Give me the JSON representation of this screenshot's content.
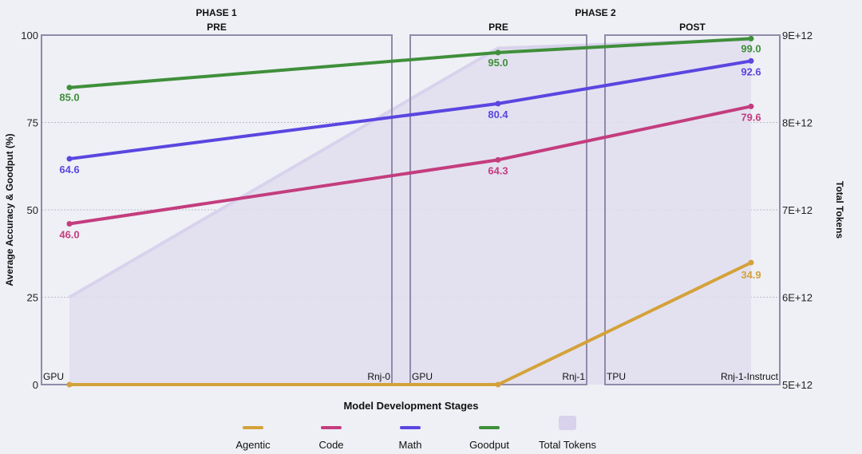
{
  "chart_data": {
    "type": "line",
    "x": [
      0,
      1,
      2
    ],
    "phases": [
      {
        "label": "PHASE 1",
        "center_x": 0.0
      },
      {
        "label": "PHASE 2",
        "center_x": 1.5
      }
    ],
    "stages": [
      {
        "label": "PRE",
        "hardware": "GPU",
        "model": "Rnj-0",
        "x_range": [
          -0.15,
          0.95
        ]
      },
      {
        "label": "PRE",
        "hardware": "GPU",
        "model": "Rnj-1",
        "x_range": [
          1.0,
          1.5
        ]
      },
      {
        "label": "POST",
        "hardware": "TPU",
        "model": "Rnj-1-Instruct",
        "x_range": [
          1.55,
          2.1
        ]
      }
    ],
    "xlabel": "Model Development Stages",
    "ylabel": "Average Accuracy & Goodput (%)",
    "ylabel_right": "Total Tokens",
    "ylim": [
      0,
      100
    ],
    "y_ticks": [
      "0",
      "25",
      "50",
      "75",
      "100"
    ],
    "y2lim": [
      5000000000000,
      9000000000000
    ],
    "y2_ticks": [
      "5E+12",
      "6E+12",
      "7E+12",
      "8E+12",
      "9E+12"
    ],
    "grid": "horizontal dotted",
    "legend_position": "bottom",
    "series": [
      {
        "name": "Agentic",
        "color": "#d4a23a",
        "values": [
          0,
          0,
          34.9
        ],
        "x_override": [
          0,
          1,
          2
        ],
        "labels": [
          "",
          "",
          "34.9"
        ]
      },
      {
        "name": "Code",
        "color": "#c43d7e",
        "values": [
          46.0,
          64.3,
          79.6
        ],
        "labels": [
          "46.0",
          "64.3",
          "79.6"
        ]
      },
      {
        "name": "Math",
        "color": "#5a46e0",
        "values": [
          64.6,
          80.4,
          92.6
        ],
        "labels": [
          "64.6",
          "80.4",
          "92.6"
        ]
      },
      {
        "name": "Goodput",
        "color": "#3f8f3a",
        "values": [
          85.0,
          95.0,
          99.0
        ],
        "labels": [
          "85.0",
          "95.0",
          "99.0"
        ]
      }
    ],
    "area_series": {
      "name": "Total Tokens",
      "color": "#d8d2ec",
      "values": [
        6000000000000,
        8850000000000,
        8950000000000
      ]
    }
  }
}
